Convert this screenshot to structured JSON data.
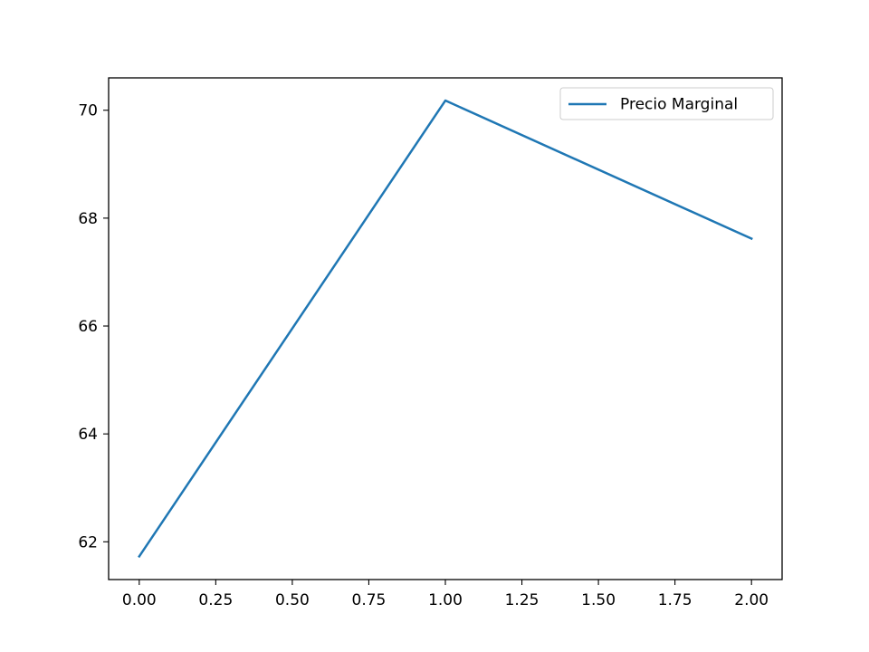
{
  "chart_data": {
    "type": "line",
    "title": "",
    "xlabel": "",
    "ylabel": "",
    "x": [
      0,
      1,
      2
    ],
    "series": [
      {
        "name": "Precio Marginal",
        "values": [
          61.73,
          70.18,
          67.62
        ],
        "color": "#1f77b4"
      }
    ],
    "xlim": [
      -0.1,
      2.1
    ],
    "ylim": [
      61.3,
      70.6
    ],
    "xticks": [
      0.0,
      0.25,
      0.5,
      0.75,
      1.0,
      1.25,
      1.5,
      1.75,
      2.0
    ],
    "xtick_labels": [
      "0.00",
      "0.25",
      "0.50",
      "0.75",
      "1.00",
      "1.25",
      "1.50",
      "1.75",
      "2.00"
    ],
    "yticks": [
      62,
      64,
      66,
      68,
      70
    ],
    "ytick_labels": [
      "62",
      "64",
      "66",
      "68",
      "70"
    ],
    "grid": false,
    "legend_position": "top-right"
  }
}
